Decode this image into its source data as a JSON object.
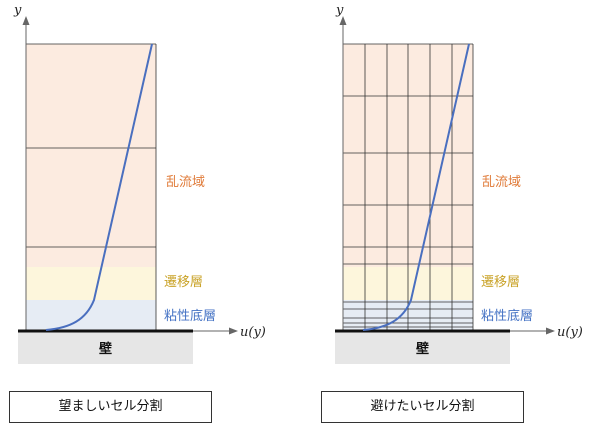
{
  "panels": [
    {
      "id": "desired",
      "y_axis_label": "y",
      "x_axis_label": "u(y)",
      "wall_label": "壁",
      "regions": [
        {
          "label": "乱流域",
          "color": "#e07b39"
        },
        {
          "label": "遷移層",
          "color": "#c9a227"
        },
        {
          "label": "粘性底層",
          "color": "#4472c4"
        }
      ],
      "caption": "望ましいセル分割"
    },
    {
      "id": "avoid",
      "y_axis_label": "y",
      "x_axis_label": "u(y)",
      "wall_label": "壁",
      "regions": [
        {
          "label": "乱流域",
          "color": "#e07b39"
        },
        {
          "label": "遷移層",
          "color": "#c9a227"
        },
        {
          "label": "粘性底層",
          "color": "#4472c4"
        }
      ],
      "caption": "避けたいセル分割"
    }
  ],
  "colors": {
    "turbulent_fill": "#fcebe0",
    "transition_fill": "#fdf6dc",
    "viscous_fill": "#e6ecf4",
    "wall_fill": "#e6e6e6",
    "profile_line": "#4a6fbf",
    "grid_line": "#333333"
  }
}
